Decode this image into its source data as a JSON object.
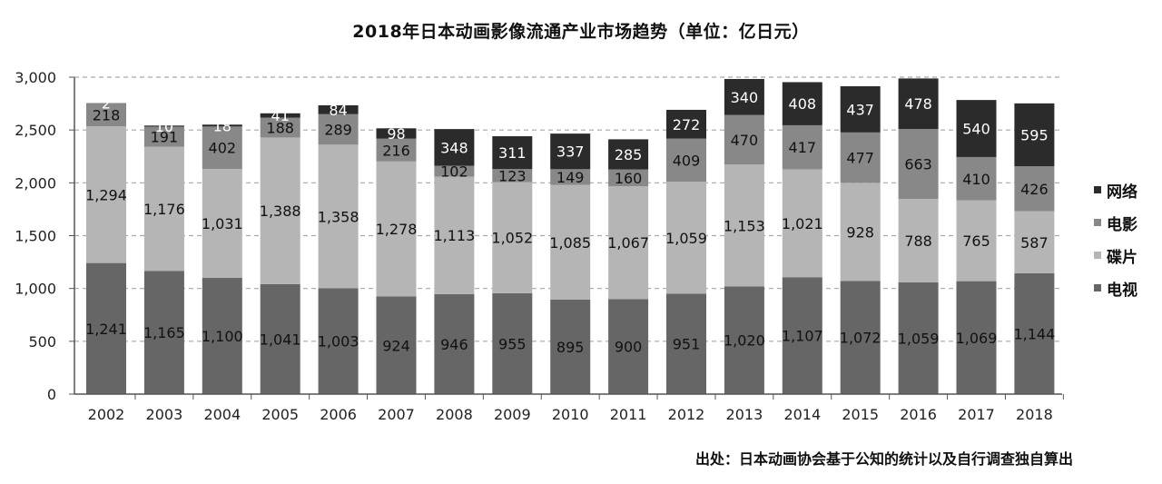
{
  "chart_data": {
    "type": "bar",
    "stacked": true,
    "title": "2018年日本动画影像流通产业市场趋势（单位：亿日元）",
    "source": "出处：日本动画协会基于公知的统计以及自行调查独自算出",
    "categories": [
      "2002",
      "2003",
      "2004",
      "2005",
      "2006",
      "2007",
      "2008",
      "2009",
      "2010",
      "2011",
      "2012",
      "2013",
      "2014",
      "2015",
      "2016",
      "2017",
      "2018"
    ],
    "series": [
      {
        "name": "电视",
        "color": "#666666",
        "values": [
          1241,
          1165,
          1100,
          1041,
          1003,
          924,
          946,
          955,
          895,
          900,
          951,
          1020,
          1107,
          1072,
          1059,
          1069,
          1144
        ],
        "labels": [
          "1,241",
          "1,165",
          "1,100",
          "1,041",
          "1,003",
          "924",
          "946",
          "955",
          "895",
          "900",
          "951",
          "1,020",
          "1,107",
          "1,072",
          "1,059",
          "1,069",
          "1,144"
        ]
      },
      {
        "name": "碟片",
        "color": "#b5b5b5",
        "values": [
          1294,
          1176,
          1031,
          1388,
          1358,
          1278,
          1113,
          1052,
          1085,
          1067,
          1059,
          1153,
          1021,
          928,
          788,
          765,
          587
        ],
        "labels": [
          "1,294",
          "1,176",
          "1,031",
          "1,388",
          "1,358",
          "1,278",
          "1,113",
          "1,052",
          "1,085",
          "1,067",
          "1,059",
          "1,153",
          "1,021",
          "928",
          "788",
          "765",
          "587"
        ]
      },
      {
        "name": "电影",
        "color": "#888888",
        "values": [
          218,
          191,
          402,
          188,
          289,
          216,
          102,
          123,
          149,
          160,
          409,
          470,
          417,
          477,
          663,
          410,
          426
        ],
        "labels": [
          "218",
          "191",
          "402",
          "188",
          "289",
          "216",
          "102",
          "123",
          "149",
          "160",
          "409",
          "470",
          "417",
          "477",
          "663",
          "410",
          "426"
        ]
      },
      {
        "name": "网络",
        "color": "#2b2b2b",
        "values": [
          2,
          10,
          18,
          41,
          84,
          98,
          348,
          311,
          337,
          285,
          272,
          340,
          408,
          437,
          478,
          540,
          595
        ],
        "labels": [
          "2",
          "10",
          "18",
          "41",
          "84",
          "98",
          "348",
          "311",
          "337",
          "285",
          "272",
          "340",
          "408",
          "437",
          "478",
          "540",
          "595"
        ]
      }
    ],
    "yticks": [
      "0",
      "500",
      "1,000",
      "1,500",
      "2,000",
      "2,500",
      "3,000"
    ],
    "ylim": [
      0,
      3000
    ],
    "legend_order": [
      "网络",
      "电影",
      "碟片",
      "电视"
    ],
    "legend_position": "right",
    "grid": true
  }
}
